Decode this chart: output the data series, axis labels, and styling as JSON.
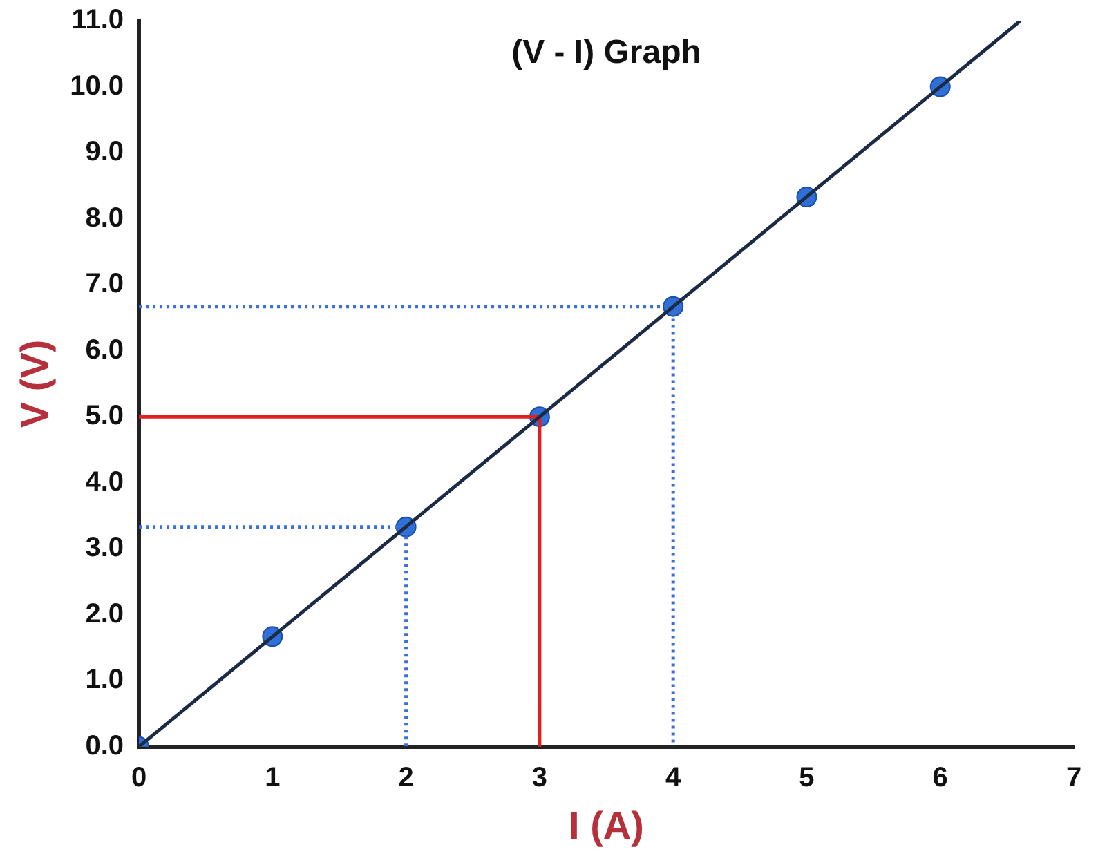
{
  "chart_data": {
    "type": "line",
    "title": "(V - I) Graph",
    "xlabel": "I (A)",
    "ylabel": "V (V)",
    "xlim": [
      0,
      7
    ],
    "xticks": [
      0,
      1,
      2,
      3,
      4,
      5,
      6,
      7
    ],
    "ylim": [
      0,
      11
    ],
    "yticks": [
      {
        "value": 0,
        "label": "0.0"
      },
      {
        "value": 1,
        "label": "1.0"
      },
      {
        "value": 2,
        "label": "2.0"
      },
      {
        "value": 3,
        "label": "3.0"
      },
      {
        "value": 4,
        "label": "4.0"
      },
      {
        "value": 5,
        "label": "5.0"
      },
      {
        "value": 6,
        "label": "6.0"
      },
      {
        "value": 7,
        "label": "7.0"
      },
      {
        "value": 8,
        "label": "8.0"
      },
      {
        "value": 9,
        "label": "9.0"
      },
      {
        "value": 10,
        "label": "10.0"
      },
      {
        "value": 11,
        "label": "11.0"
      }
    ],
    "grid": false,
    "legend": false,
    "series": [
      {
        "type": "line",
        "color": "#1c2b45",
        "x": [
          0,
          6.6
        ],
        "values": [
          0,
          11
        ],
        "marker": "none",
        "line_style": "solid"
      },
      {
        "type": "scatter",
        "color": "#2f6fd6",
        "x": [
          0,
          1,
          2,
          3,
          4,
          5,
          6
        ],
        "values": [
          0,
          1.67,
          3.33,
          5,
          6.67,
          8.33,
          10
        ],
        "marker": "circle"
      },
      {
        "type": "line",
        "color": "#3a6fd8",
        "x": [
          0,
          2,
          2
        ],
        "values": [
          3.33,
          3.33,
          0
        ],
        "marker": "none",
        "line_style": "dotted"
      },
      {
        "type": "line",
        "color": "#3a6fd8",
        "x": [
          0,
          4,
          4
        ],
        "values": [
          6.67,
          6.67,
          0
        ],
        "marker": "none",
        "line_style": "dotted"
      },
      {
        "type": "line",
        "color": "#e02020",
        "x": [
          0,
          3,
          3
        ],
        "values": [
          5,
          5,
          0
        ],
        "marker": "none",
        "line_style": "solid"
      }
    ]
  }
}
